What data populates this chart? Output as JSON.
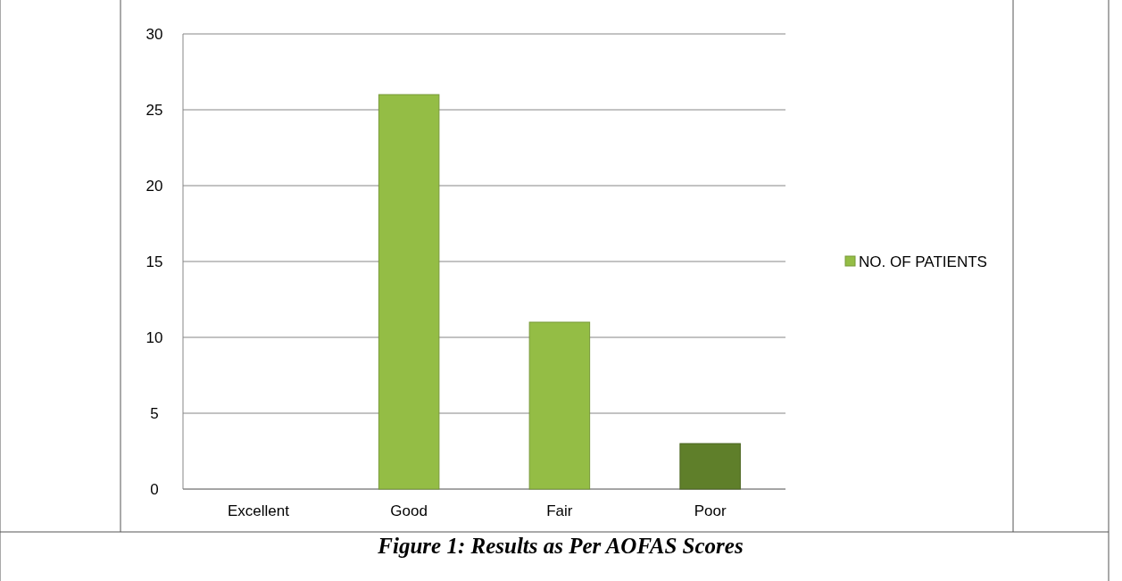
{
  "chart_data": {
    "type": "bar",
    "categories": [
      "Excellent",
      "Good",
      "Fair",
      "Poor"
    ],
    "series": [
      {
        "name": "NO. OF PATIENTS",
        "color": "#94bd45",
        "colors": [
          "#94bd45",
          "#94bd45",
          "#94bd45",
          "#5f7f2a"
        ],
        "values": [
          0,
          26,
          11,
          3
        ]
      }
    ],
    "ylim": [
      0,
      30
    ],
    "yticks": [
      0,
      5,
      10,
      15,
      20,
      25,
      30
    ],
    "grid": "y",
    "legend": "right",
    "annotations": [
      "Figure 1: Results as Per AOFAS Scores"
    ]
  }
}
